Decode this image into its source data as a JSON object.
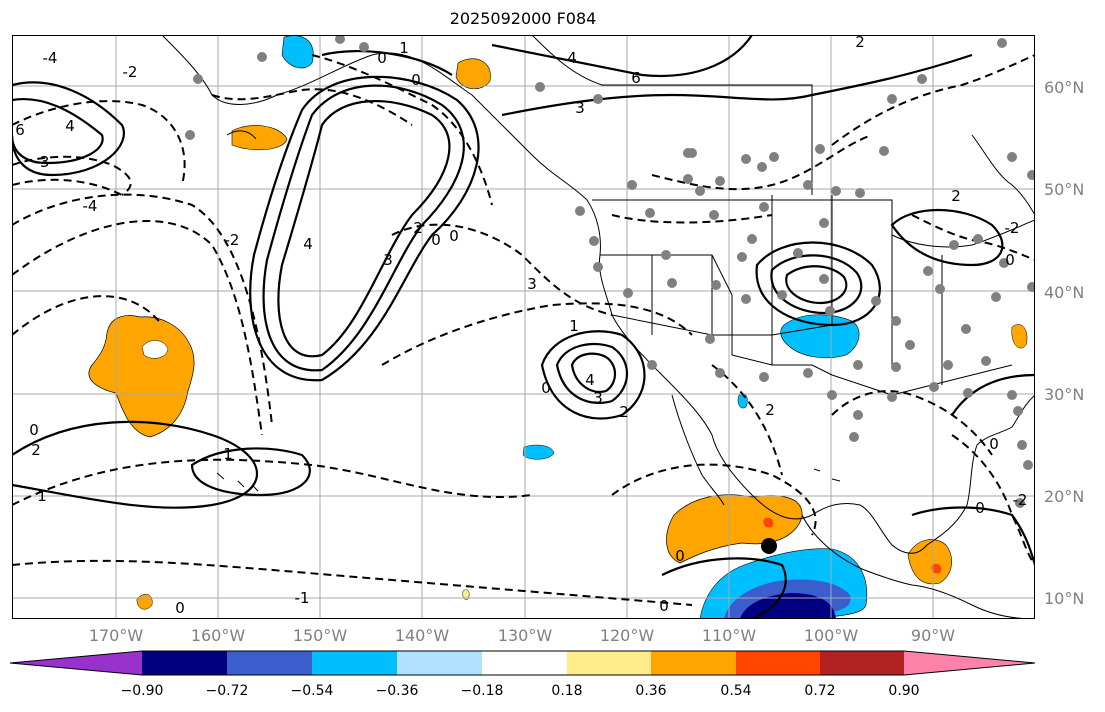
{
  "title": "2025092000 F084",
  "lat_labels": [
    "10°N",
    "20°N",
    "30°N",
    "40°N",
    "50°N",
    "60°N"
  ],
  "lon_labels": [
    "170°W",
    "160°W",
    "150°W",
    "140°W",
    "130°W",
    "120°W",
    "110°W",
    "100°W",
    "90°W"
  ],
  "colorbar": {
    "tick_labels": [
      "−0.90",
      "−0.72",
      "−0.54",
      "−0.36",
      "−0.18",
      "0.18",
      "0.36",
      "0.54",
      "0.72",
      "0.90"
    ],
    "colors": [
      "#9932cc",
      "#000080",
      "#3a5fcd",
      "#00bfff",
      "#b0e2ff",
      "#ffffff",
      "#ffec8b",
      "#ffa500",
      "#ff4500",
      "#b22222",
      "#ff82ab"
    ]
  },
  "contour_labels": [
    "3",
    "2",
    "0",
    "1",
    "6",
    "4",
    "-1",
    "-3",
    "-2",
    "-4"
  ],
  "colors": {
    "text": "#000000",
    "axis_label": "#808080",
    "grid": "#a9a9a9",
    "stations": "#808080"
  }
}
